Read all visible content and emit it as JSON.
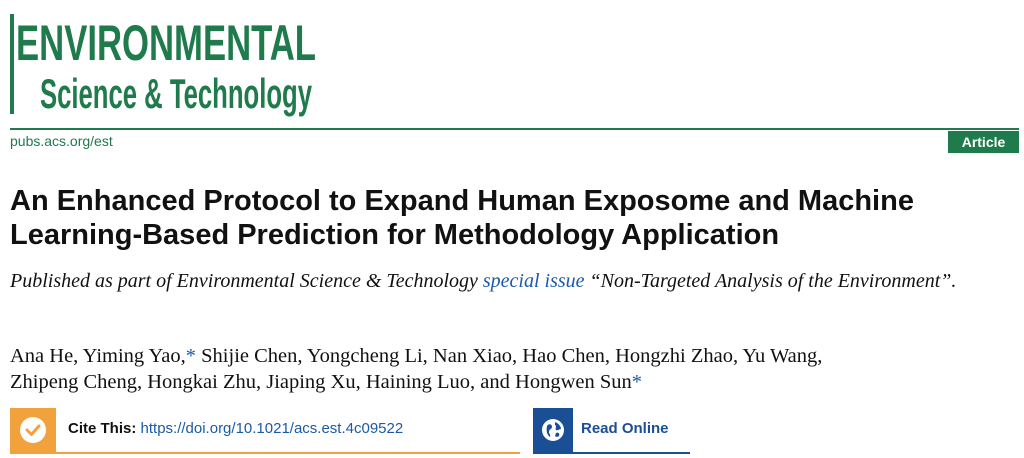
{
  "logo": {
    "line1": "ENVIRONMENTAL",
    "line2": "Science & Technology",
    "color": "#1f7a4c"
  },
  "header": {
    "journal_url": "pubs.acs.org/est",
    "article_type": "Article",
    "rule_color": "#1f7a4c"
  },
  "article": {
    "title": "An Enhanced Protocol to Expand Human Exposome and Machine Learning-Based Prediction for Methodology Application",
    "published_prefix": "Published as part of Environmental Science & Technology ",
    "special_issue_link": "special issue",
    "published_suffix": " “Non-Targeted Analysis of the Environment”.",
    "authors": [
      {
        "name": "Ana He",
        "corresponding": false
      },
      {
        "name": "Yiming Yao",
        "corresponding": true
      },
      {
        "name": "Shijie Chen",
        "corresponding": false
      },
      {
        "name": "Yongcheng Li",
        "corresponding": false
      },
      {
        "name": "Nan Xiao",
        "corresponding": false
      },
      {
        "name": "Hao Chen",
        "corresponding": false
      },
      {
        "name": "Hongzhi Zhao",
        "corresponding": false
      },
      {
        "name": "Yu Wang",
        "corresponding": false
      },
      {
        "name": "Zhipeng Cheng",
        "corresponding": false
      },
      {
        "name": "Hongkai Zhu",
        "corresponding": false
      },
      {
        "name": "Jiaping Xu",
        "corresponding": false
      },
      {
        "name": "Haining Luo",
        "corresponding": false
      },
      {
        "name": "Hongwen Sun",
        "corresponding": true
      }
    ],
    "authors_line1": "Ana He, Yiming Yao,",
    "authors_line1b": " Shijie Chen, Yongcheng Li, Nan Xiao, Hao Chen, Hongzhi Zhao, Yu Wang,",
    "authors_line2": "Zhipeng Cheng, Hongkai Zhu, Jiaping Xu, Haining Luo, and Hongwen Sun",
    "corresponding_mark": "*"
  },
  "cite": {
    "label": "Cite This:",
    "doi": "https://doi.org/10.1021/acs.est.4c09522",
    "icon": "check-icon",
    "color": "#f2a23c"
  },
  "read_online": {
    "label": "Read Online",
    "icon": "globe-icon",
    "color": "#1a4f96"
  },
  "colors": {
    "link": "#1a5aa8"
  }
}
